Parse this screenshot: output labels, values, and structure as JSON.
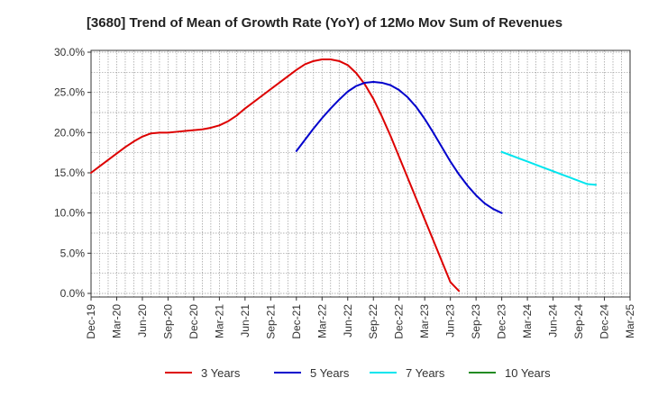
{
  "chart_data": {
    "type": "line",
    "title": "[3680]  Trend of Mean of Growth Rate (YoY) of 12Mo Mov Sum of Revenues",
    "xlabel": "",
    "ylabel": "",
    "x_labels": [
      "Dec-19",
      "Mar-20",
      "Jun-20",
      "Sep-20",
      "Dec-20",
      "Mar-21",
      "Jun-21",
      "Sep-21",
      "Dec-21",
      "Mar-22",
      "Jun-22",
      "Sep-22",
      "Dec-22",
      "Mar-23",
      "Jun-23",
      "Sep-23",
      "Dec-23",
      "Mar-24",
      "Jun-24",
      "Sep-24",
      "Dec-24",
      "Mar-25"
    ],
    "ylim": [
      0,
      30
    ],
    "y_ticks": [
      0,
      5,
      10,
      15,
      20,
      25,
      30
    ],
    "y_tick_labels": [
      "0.0%",
      "5.0%",
      "10.0%",
      "15.0%",
      "20.0%",
      "25.0%",
      "30.0%"
    ],
    "grid": true,
    "series": [
      {
        "name": "3 Years",
        "color": "#dd0000",
        "start_index": 0,
        "values": [
          15.0,
          15.8,
          16.6,
          17.4,
          18.2,
          18.9,
          19.5,
          19.9,
          20.0,
          20.0,
          20.1,
          20.2,
          20.3,
          20.4,
          20.6,
          20.9,
          21.4,
          22.1,
          23.0,
          23.8,
          24.6,
          25.4,
          26.2,
          27.0,
          27.8,
          28.5,
          28.9,
          29.1,
          29.1,
          28.9,
          28.4,
          27.4,
          26.0,
          24.2,
          22.0,
          19.6,
          17.0,
          14.4,
          11.8,
          9.2,
          6.6,
          4.0,
          1.4,
          0.3
        ]
      },
      {
        "name": "5 Years",
        "color": "#0000cc",
        "start_index": 24,
        "values": [
          17.7,
          19.1,
          20.5,
          21.8,
          23.0,
          24.1,
          25.1,
          25.8,
          26.2,
          26.3,
          26.2,
          25.9,
          25.3,
          24.4,
          23.2,
          21.7,
          20.0,
          18.2,
          16.4,
          14.8,
          13.4,
          12.2,
          11.2,
          10.5,
          10.0
        ]
      },
      {
        "name": "7 Years",
        "color": "#00e5ee",
        "start_index": 48,
        "values": [
          17.6,
          17.2,
          16.8,
          16.4,
          16.0,
          15.6,
          15.2,
          14.8,
          14.4,
          14.0,
          13.6,
          13.5
        ]
      },
      {
        "name": "10 Years",
        "color": "#228b22",
        "start_index": 0,
        "values": []
      }
    ]
  }
}
